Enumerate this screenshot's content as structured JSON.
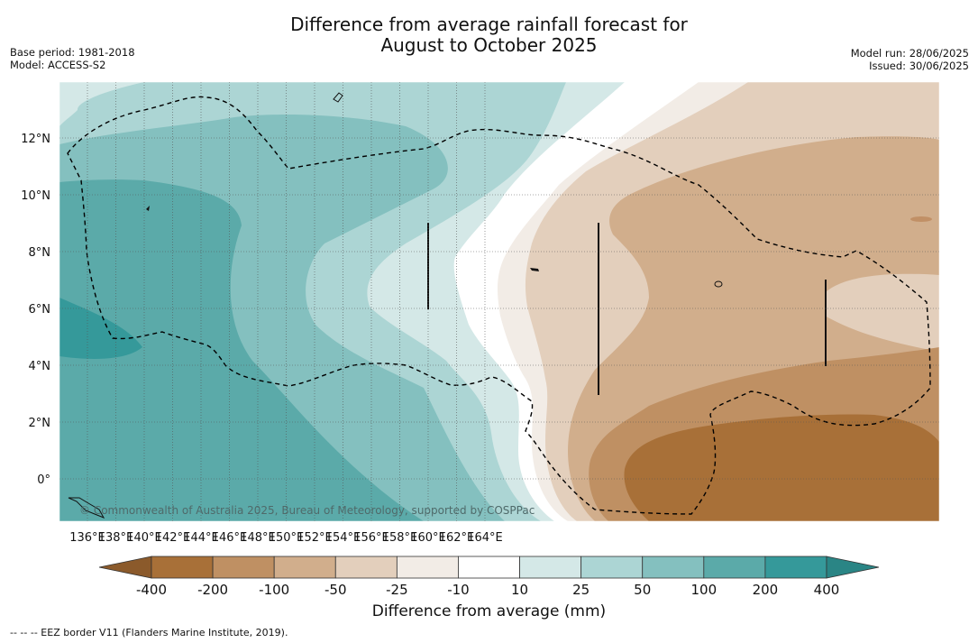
{
  "title_line1": "Difference from average rainfall forecast for",
  "title_line2": "August to October 2025",
  "meta_left": [
    "Base period: 1981-2018",
    "Model: ACCESS-S2"
  ],
  "meta_right": [
    "Model run: 28/06/2025",
    "Issued: 30/06/2025"
  ],
  "lon_ticks": [
    "136°E",
    "138°E",
    "140°E",
    "142°E",
    "144°E",
    "146°E",
    "148°E",
    "150°E",
    "152°E",
    "154°E",
    "156°E",
    "158°E",
    "160°E",
    "162°E",
    "164°E"
  ],
  "lat_ticks": [
    "12°N",
    "10°N",
    "8°N",
    "6°N",
    "4°N",
    "2°N",
    "0°"
  ],
  "copyright": "© Commonwealth of Australia 2025, Bureau of Meteorology, supported by COSPPac",
  "colorbar": {
    "labels": [
      "-400",
      "-200",
      "-100",
      "-50",
      "-25",
      "-10",
      "10",
      "25",
      "50",
      "100",
      "200",
      "400"
    ],
    "colors": [
      "#8b5a2b",
      "#a87038",
      "#bf9063",
      "#d1ae8c",
      "#e3cfbc",
      "#f2ece6",
      "#ffffff",
      "#d4e8e7",
      "#acd5d4",
      "#84c0bf",
      "#5baaa9",
      "#35999a",
      "#2a8585"
    ],
    "label": "Difference from average (mm)"
  },
  "footer": "--  --  -- EEZ border V11 (Flanders Marine Institute, 2019)."
}
